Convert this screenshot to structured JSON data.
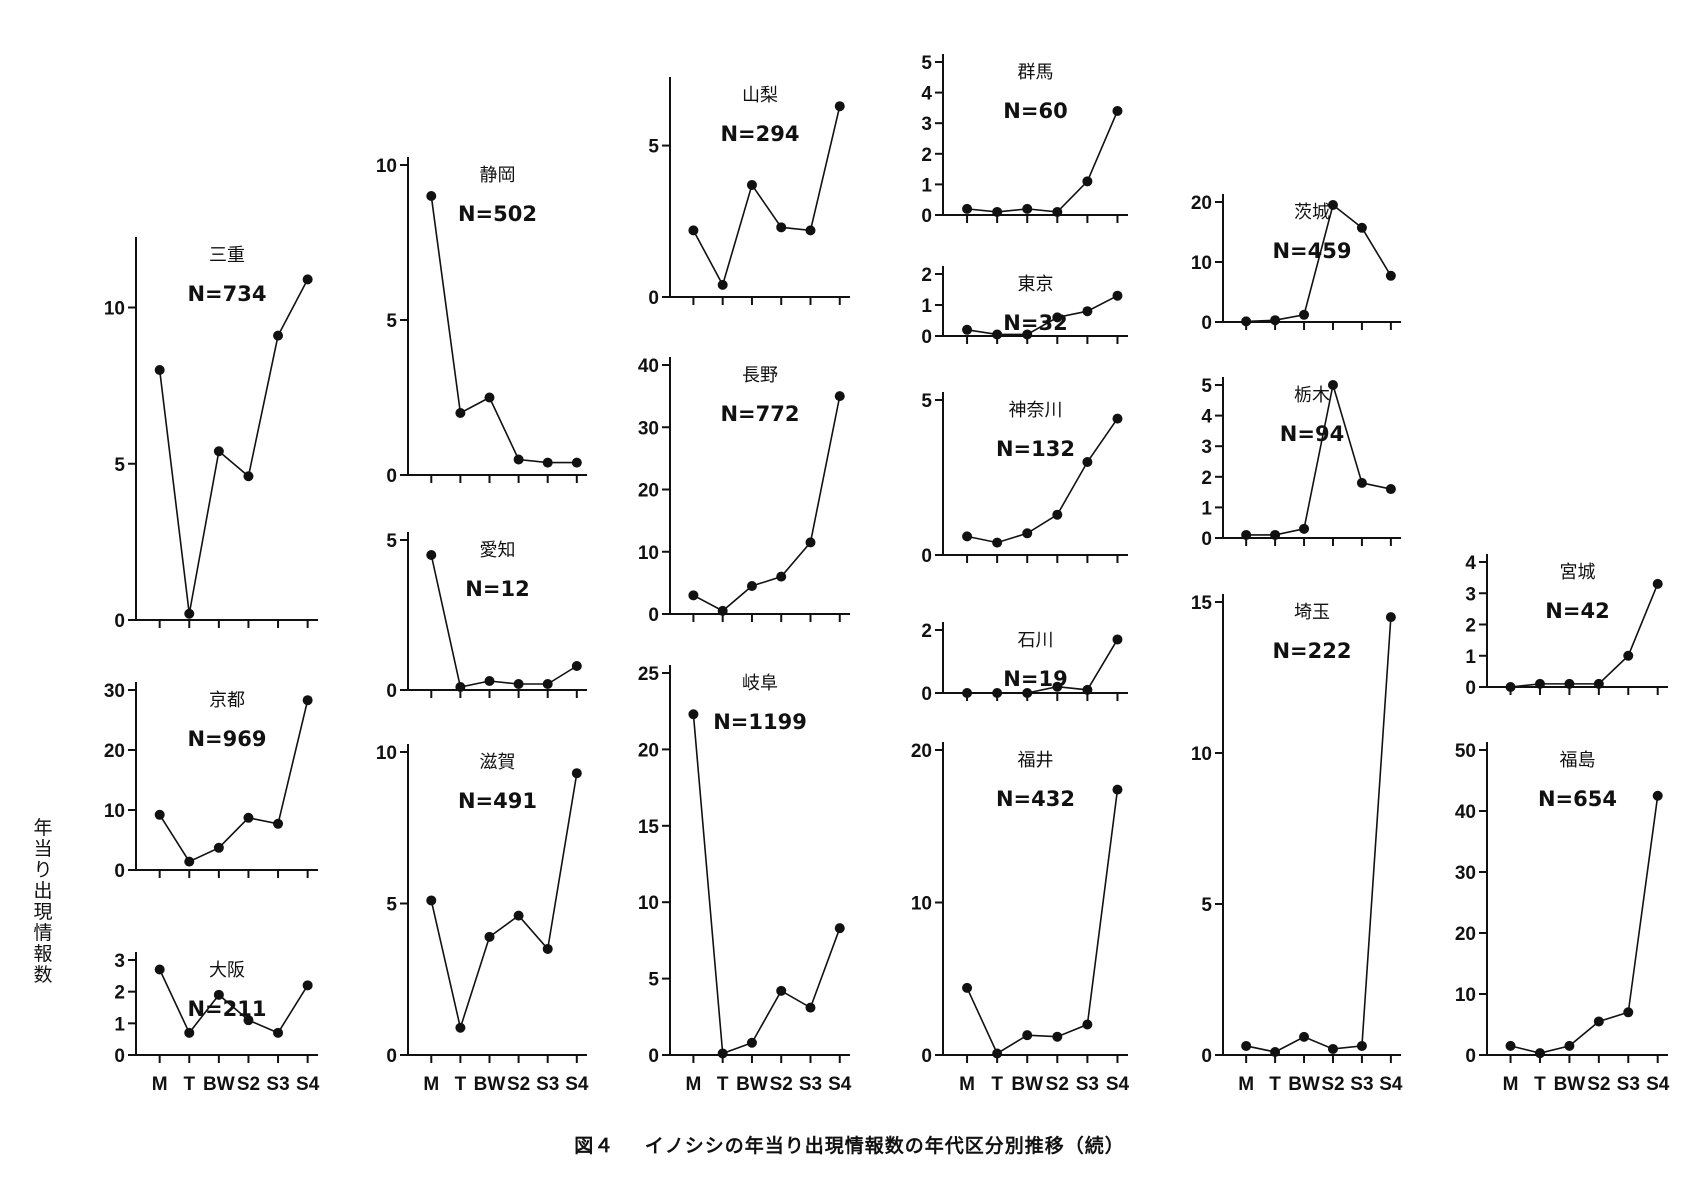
{
  "figure": {
    "ylabel": "年当り出現情報数",
    "caption_number": "図４",
    "caption_text": "イノシシの年当り出現情報数の年代区分別推移（続）"
  },
  "chart_data": [
    {
      "type": "line",
      "title": "三重",
      "n_label": "N=734",
      "categories": [
        "M",
        "T",
        "BW",
        "S2",
        "S3",
        "S4"
      ],
      "values": [
        8.0,
        0.2,
        5.4,
        4.6,
        9.1,
        10.9
      ],
      "ylim": [
        0,
        12
      ],
      "yticks": [
        0,
        5,
        10
      ],
      "show_xlabels": false
    },
    {
      "type": "line",
      "title": "京都",
      "n_label": "N=969",
      "categories": [
        "M",
        "T",
        "BW",
        "S2",
        "S3",
        "S4"
      ],
      "values": [
        9.2,
        1.4,
        3.7,
        8.7,
        7.7,
        28.3
      ],
      "ylim": [
        0,
        30
      ],
      "yticks": [
        0,
        10,
        20,
        30
      ],
      "show_xlabels": false
    },
    {
      "type": "line",
      "title": "大阪",
      "n_label": "N=211",
      "categories": [
        "M",
        "T",
        "BW",
        "S2",
        "S3",
        "S4"
      ],
      "values": [
        2.7,
        0.7,
        1.9,
        1.1,
        0.7,
        2.2
      ],
      "ylim": [
        0,
        3
      ],
      "yticks": [
        0,
        1,
        2,
        3
      ],
      "show_xlabels": true
    },
    {
      "type": "line",
      "title": "静岡",
      "n_label": "N=502",
      "categories": [
        "M",
        "T",
        "BW",
        "S2",
        "S3",
        "S4"
      ],
      "values": [
        9.0,
        2.0,
        2.5,
        0.5,
        0.4,
        0.4
      ],
      "ylim": [
        0,
        10
      ],
      "yticks": [
        0,
        5,
        10
      ],
      "show_xlabels": false
    },
    {
      "type": "line",
      "title": "愛知",
      "n_label": "N=12",
      "categories": [
        "M",
        "T",
        "BW",
        "S2",
        "S3",
        "S4"
      ],
      "values": [
        4.5,
        0.1,
        0.3,
        0.2,
        0.2,
        0.8
      ],
      "ylim": [
        0,
        5
      ],
      "yticks": [
        0,
        5
      ],
      "show_xlabels": false
    },
    {
      "type": "line",
      "title": "滋賀",
      "n_label": "N=491",
      "categories": [
        "M",
        "T",
        "BW",
        "S2",
        "S3",
        "S4"
      ],
      "values": [
        5.1,
        0.9,
        3.9,
        4.6,
        3.5,
        9.3
      ],
      "ylim": [
        0,
        10
      ],
      "yticks": [
        0,
        5,
        10
      ],
      "show_xlabels": true
    },
    {
      "type": "line",
      "title": "山梨",
      "n_label": "N=294",
      "categories": [
        "M",
        "T",
        "BW",
        "S2",
        "S3",
        "S4"
      ],
      "values": [
        2.2,
        0.4,
        3.7,
        2.3,
        2.2,
        6.3
      ],
      "ylim": [
        0,
        7
      ],
      "yticks": [
        0,
        5
      ],
      "show_xlabels": false
    },
    {
      "type": "line",
      "title": "長野",
      "n_label": "N=772",
      "categories": [
        "M",
        "T",
        "BW",
        "S2",
        "S3",
        "S4"
      ],
      "values": [
        3.0,
        0.5,
        4.5,
        6.0,
        11.5,
        35.0
      ],
      "ylim": [
        0,
        40
      ],
      "yticks": [
        0,
        10,
        20,
        30,
        40
      ],
      "show_xlabels": false
    },
    {
      "type": "line",
      "title": "岐阜",
      "n_label": "N=1199",
      "categories": [
        "M",
        "T",
        "BW",
        "S2",
        "S3",
        "S4"
      ],
      "values": [
        22.3,
        0.1,
        0.8,
        4.2,
        3.1,
        8.3
      ],
      "ylim": [
        0,
        25
      ],
      "yticks": [
        0,
        5,
        10,
        15,
        20,
        25
      ],
      "show_xlabels": true
    },
    {
      "type": "line",
      "title": "群馬",
      "n_label": "N=60",
      "categories": [
        "M",
        "T",
        "BW",
        "S2",
        "S3",
        "S4"
      ],
      "values": [
        0.2,
        0.1,
        0.2,
        0.1,
        1.1,
        3.4
      ],
      "ylim": [
        0,
        5
      ],
      "yticks": [
        0,
        1,
        2,
        3,
        4,
        5
      ],
      "show_xlabels": false
    },
    {
      "type": "line",
      "title": "東京",
      "n_label": "N=32",
      "categories": [
        "M",
        "T",
        "BW",
        "S2",
        "S3",
        "S4"
      ],
      "values": [
        0.2,
        0.05,
        0.05,
        0.6,
        0.8,
        1.3
      ],
      "ylim": [
        0,
        2
      ],
      "yticks": [
        0,
        1,
        2
      ],
      "show_xlabels": false
    },
    {
      "type": "line",
      "title": "神奈川",
      "n_label": "N=132",
      "categories": [
        "M",
        "T",
        "BW",
        "S2",
        "S3",
        "S4"
      ],
      "values": [
        0.6,
        0.4,
        0.7,
        1.3,
        3.0,
        4.4
      ],
      "ylim": [
        0,
        5
      ],
      "yticks": [
        0,
        5
      ],
      "show_xlabels": false
    },
    {
      "type": "line",
      "title": "石川",
      "n_label": "N=19",
      "categories": [
        "M",
        "T",
        "BW",
        "S2",
        "S3",
        "S4"
      ],
      "values": [
        0.0,
        0.0,
        0.0,
        0.2,
        0.1,
        1.7
      ],
      "ylim": [
        0,
        2
      ],
      "yticks": [
        0,
        2
      ],
      "show_xlabels": false
    },
    {
      "type": "line",
      "title": "福井",
      "n_label": "N=432",
      "categories": [
        "M",
        "T",
        "BW",
        "S2",
        "S3",
        "S4"
      ],
      "values": [
        4.4,
        0.1,
        1.3,
        1.2,
        2.0,
        17.4
      ],
      "ylim": [
        0,
        20
      ],
      "yticks": [
        0,
        10,
        20
      ],
      "show_xlabels": true
    },
    {
      "type": "line",
      "title": "茨城",
      "n_label": "N=459",
      "categories": [
        "M",
        "T",
        "BW",
        "S2",
        "S3",
        "S4"
      ],
      "values": [
        0.1,
        0.3,
        1.2,
        19.5,
        15.7,
        7.7
      ],
      "ylim": [
        0,
        20
      ],
      "yticks": [
        0,
        10,
        20
      ],
      "show_xlabels": false
    },
    {
      "type": "line",
      "title": "栃木",
      "n_label": "N=94",
      "categories": [
        "M",
        "T",
        "BW",
        "S2",
        "S3",
        "S4"
      ],
      "values": [
        0.1,
        0.1,
        0.3,
        5.0,
        1.8,
        1.6
      ],
      "ylim": [
        0,
        5
      ],
      "yticks": [
        0,
        1,
        2,
        3,
        4,
        5
      ],
      "show_xlabels": false
    },
    {
      "type": "line",
      "title": "埼玉",
      "n_label": "N=222",
      "categories": [
        "M",
        "T",
        "BW",
        "S2",
        "S3",
        "S4"
      ],
      "values": [
        0.3,
        0.1,
        0.6,
        0.2,
        0.3,
        14.5
      ],
      "ylim": [
        0,
        15
      ],
      "yticks": [
        0,
        5,
        10,
        15
      ],
      "show_xlabels": true
    },
    {
      "type": "line",
      "title": "宮城",
      "n_label": "N=42",
      "categories": [
        "M",
        "T",
        "BW",
        "S2",
        "S3",
        "S4"
      ],
      "values": [
        0.0,
        0.1,
        0.1,
        0.1,
        1.0,
        3.3
      ],
      "ylim": [
        0,
        4
      ],
      "yticks": [
        0,
        1,
        2,
        3,
        4
      ],
      "show_xlabels": false
    },
    {
      "type": "line",
      "title": "福島",
      "n_label": "N=654",
      "categories": [
        "M",
        "T",
        "BW",
        "S2",
        "S3",
        "S4"
      ],
      "values": [
        1.5,
        0.3,
        1.5,
        5.5,
        7.0,
        42.5
      ],
      "ylim": [
        0,
        50
      ],
      "yticks": [
        0,
        10,
        20,
        30,
        40,
        50
      ],
      "show_xlabels": true
    }
  ]
}
